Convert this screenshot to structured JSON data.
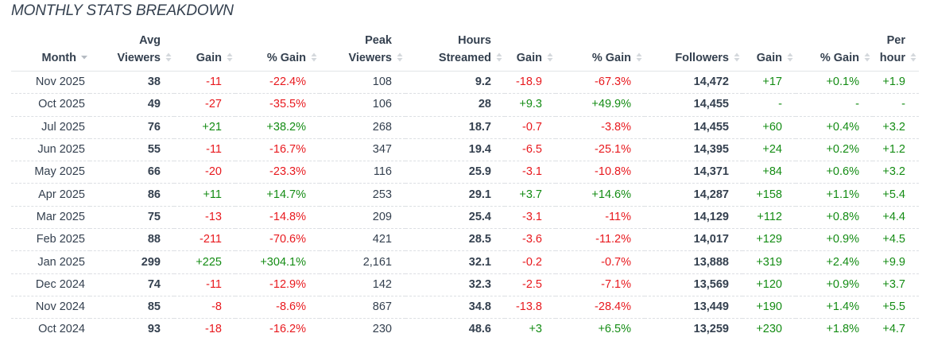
{
  "title": "MONTHLY STATS BREAKDOWN",
  "colors": {
    "positive": "#148c14",
    "negative": "#e8191e",
    "text": "#34404f",
    "sort_icon": "#c8ccd1"
  },
  "columns": [
    {
      "line1": "",
      "line2": "Month",
      "sort": "sorted-desc"
    },
    {
      "line1": "Avg",
      "line2": "Viewers",
      "sort": "unsorted"
    },
    {
      "line1": "",
      "line2": "Gain",
      "sort": "unsorted"
    },
    {
      "line1": "",
      "line2": "% Gain",
      "sort": "unsorted"
    },
    {
      "line1": "Peak",
      "line2": "Viewers",
      "sort": "unsorted"
    },
    {
      "line1": "Hours",
      "line2": "Streamed",
      "sort": "unsorted"
    },
    {
      "line1": "",
      "line2": "Gain",
      "sort": "unsorted"
    },
    {
      "line1": "",
      "line2": "% Gain",
      "sort": "unsorted"
    },
    {
      "line1": "",
      "line2": "Followers",
      "sort": "unsorted"
    },
    {
      "line1": "",
      "line2": "Gain",
      "sort": "unsorted"
    },
    {
      "line1": "",
      "line2": "% Gain",
      "sort": "unsorted"
    },
    {
      "line1": "Per",
      "line2": "hour",
      "sort": "unsorted"
    }
  ],
  "rows": [
    {
      "month": "Nov 2025",
      "avg_viewers": "38",
      "avg_gain": "-11",
      "avg_pct": "-22.4%",
      "peak_viewers": "108",
      "hours": "9.2",
      "hours_gain": "-18.9",
      "hours_pct": "-67.3%",
      "followers": "14,472",
      "fol_gain": "+17",
      "fol_pct": "+0.1%",
      "per_hour": "+1.9"
    },
    {
      "month": "Oct 2025",
      "avg_viewers": "49",
      "avg_gain": "-27",
      "avg_pct": "-35.5%",
      "peak_viewers": "106",
      "hours": "28",
      "hours_gain": "+9.3",
      "hours_pct": "+49.9%",
      "followers": "14,455",
      "fol_gain": "-",
      "fol_pct": "-",
      "per_hour": "-"
    },
    {
      "month": "Jul 2025",
      "avg_viewers": "76",
      "avg_gain": "+21",
      "avg_pct": "+38.2%",
      "peak_viewers": "268",
      "hours": "18.7",
      "hours_gain": "-0.7",
      "hours_pct": "-3.8%",
      "followers": "14,455",
      "fol_gain": "+60",
      "fol_pct": "+0.4%",
      "per_hour": "+3.2"
    },
    {
      "month": "Jun 2025",
      "avg_viewers": "55",
      "avg_gain": "-11",
      "avg_pct": "-16.7%",
      "peak_viewers": "347",
      "hours": "19.4",
      "hours_gain": "-6.5",
      "hours_pct": "-25.1%",
      "followers": "14,395",
      "fol_gain": "+24",
      "fol_pct": "+0.2%",
      "per_hour": "+1.2"
    },
    {
      "month": "May 2025",
      "avg_viewers": "66",
      "avg_gain": "-20",
      "avg_pct": "-23.3%",
      "peak_viewers": "116",
      "hours": "25.9",
      "hours_gain": "-3.1",
      "hours_pct": "-10.8%",
      "followers": "14,371",
      "fol_gain": "+84",
      "fol_pct": "+0.6%",
      "per_hour": "+3.2"
    },
    {
      "month": "Apr 2025",
      "avg_viewers": "86",
      "avg_gain": "+11",
      "avg_pct": "+14.7%",
      "peak_viewers": "253",
      "hours": "29.1",
      "hours_gain": "+3.7",
      "hours_pct": "+14.6%",
      "followers": "14,287",
      "fol_gain": "+158",
      "fol_pct": "+1.1%",
      "per_hour": "+5.4"
    },
    {
      "month": "Mar 2025",
      "avg_viewers": "75",
      "avg_gain": "-13",
      "avg_pct": "-14.8%",
      "peak_viewers": "209",
      "hours": "25.4",
      "hours_gain": "-3.1",
      "hours_pct": "-11%",
      "followers": "14,129",
      "fol_gain": "+112",
      "fol_pct": "+0.8%",
      "per_hour": "+4.4"
    },
    {
      "month": "Feb 2025",
      "avg_viewers": "88",
      "avg_gain": "-211",
      "avg_pct": "-70.6%",
      "peak_viewers": "421",
      "hours": "28.5",
      "hours_gain": "-3.6",
      "hours_pct": "-11.2%",
      "followers": "14,017",
      "fol_gain": "+129",
      "fol_pct": "+0.9%",
      "per_hour": "+4.5"
    },
    {
      "month": "Jan 2025",
      "avg_viewers": "299",
      "avg_gain": "+225",
      "avg_pct": "+304.1%",
      "peak_viewers": "2,161",
      "hours": "32.1",
      "hours_gain": "-0.2",
      "hours_pct": "-0.7%",
      "followers": "13,888",
      "fol_gain": "+319",
      "fol_pct": "+2.4%",
      "per_hour": "+9.9"
    },
    {
      "month": "Dec 2024",
      "avg_viewers": "74",
      "avg_gain": "-11",
      "avg_pct": "-12.9%",
      "peak_viewers": "142",
      "hours": "32.3",
      "hours_gain": "-2.5",
      "hours_pct": "-7.1%",
      "followers": "13,569",
      "fol_gain": "+120",
      "fol_pct": "+0.9%",
      "per_hour": "+3.7"
    },
    {
      "month": "Nov 2024",
      "avg_viewers": "85",
      "avg_gain": "-8",
      "avg_pct": "-8.6%",
      "peak_viewers": "867",
      "hours": "34.8",
      "hours_gain": "-13.8",
      "hours_pct": "-28.4%",
      "followers": "13,449",
      "fol_gain": "+190",
      "fol_pct": "+1.4%",
      "per_hour": "+5.5"
    },
    {
      "month": "Oct 2024",
      "avg_viewers": "93",
      "avg_gain": "-18",
      "avg_pct": "-16.2%",
      "peak_viewers": "230",
      "hours": "48.6",
      "hours_gain": "+3",
      "hours_pct": "+6.5%",
      "followers": "13,259",
      "fol_gain": "+230",
      "fol_pct": "+1.8%",
      "per_hour": "+4.7"
    }
  ]
}
